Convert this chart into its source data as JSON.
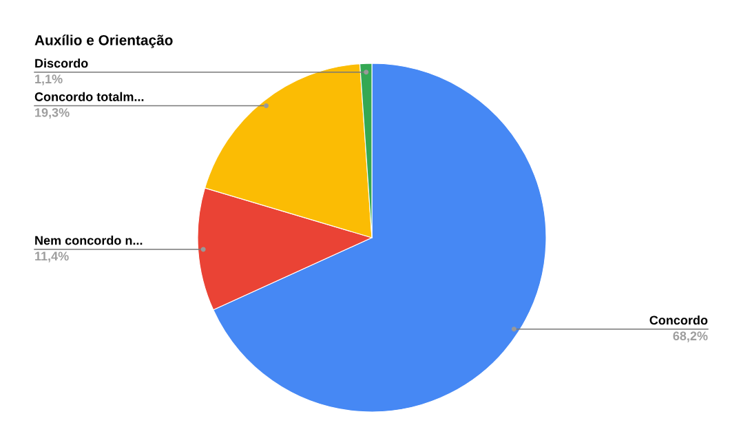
{
  "chart_data": {
    "type": "pie",
    "title": "Auxílio e Orientação",
    "categories": [
      "Concordo",
      "Nem concordo n...",
      "Concordo totalm...",
      "Discordo"
    ],
    "values": [
      68.2,
      11.4,
      19.3,
      1.1
    ],
    "colors": [
      "#4688f4",
      "#ea4335",
      "#fbbc04",
      "#34a853"
    ],
    "value_labels": [
      "68,2%",
      "11,4%",
      "19,3%",
      "1,1%"
    ],
    "legend": false
  }
}
